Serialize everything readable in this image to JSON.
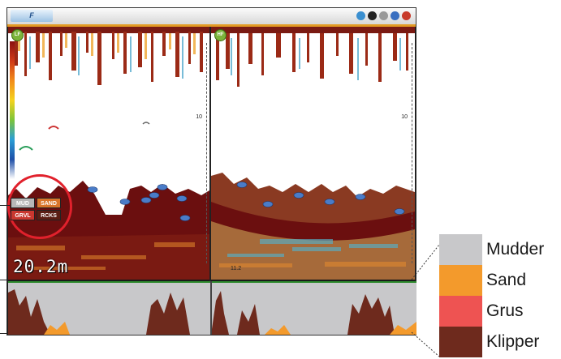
{
  "window": {
    "logo": "F",
    "depth_marker_top": "0",
    "depth_tick": "10"
  },
  "panes": {
    "left": {
      "badge": "LF",
      "tick": "10"
    },
    "right": {
      "badge": "HF",
      "tick": "10",
      "small_readout": "11.2"
    }
  },
  "depth_readout": "20.2m",
  "bottom_type": {
    "cells": [
      {
        "label": "MUD",
        "color": "#b7b7b7"
      },
      {
        "label": "SAND",
        "color": "#d9752a"
      },
      {
        "label": "GRVL",
        "color": "#c9372f"
      },
      {
        "label": "RCKS",
        "color": "#5a1e14"
      }
    ]
  },
  "legend": [
    {
      "label": "Mudder",
      "color": "#c8c8ca"
    },
    {
      "label": "Sand",
      "color": "#f39a2c"
    },
    {
      "label": "Grus",
      "color": "#ee5352"
    },
    {
      "label": "Klipper",
      "color": "#6e2a1d"
    }
  ],
  "colors": {
    "accent": "#e39b23",
    "ring": "#e1212c",
    "bottom": "#6b0f0f"
  }
}
